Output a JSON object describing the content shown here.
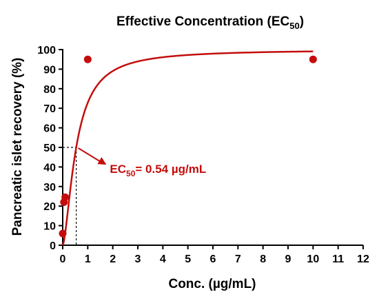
{
  "chart_data": {
    "type": "scatter",
    "title": "Effective Concentration (EC",
    "title_sub": "50",
    "title_end": ")",
    "xlabel": "Conc. (µg/mL)",
    "ylabel": "Pancreatic islet recovery (%)",
    "xlim": [
      0,
      12
    ],
    "ylim": [
      0,
      100
    ],
    "x_ticks": [
      0,
      1,
      2,
      3,
      4,
      5,
      6,
      7,
      8,
      9,
      10,
      11,
      12
    ],
    "y_ticks": [
      0,
      10,
      20,
      30,
      40,
      50,
      60,
      70,
      80,
      90,
      100
    ],
    "grid": false,
    "points": [
      {
        "x": 0,
        "y": 6
      },
      {
        "x": 0.05,
        "y": 22
      },
      {
        "x": 0.1,
        "y": 24.5
      },
      {
        "x": 1,
        "y": 95
      },
      {
        "x": 10,
        "y": 95
      }
    ],
    "fit_curve": {
      "bottom": 0,
      "top": 100,
      "ec50": 0.54,
      "hill": 1.6,
      "x_range": [
        0,
        10
      ]
    },
    "annotation": {
      "prefix": "EC",
      "sub": "50",
      "text": "= 0.54 µg/mL",
      "ec50_x": 0.54,
      "ec50_y": 50,
      "label_anchor": {
        "x": 1.8,
        "y": 41.5
      }
    },
    "colors": {
      "points": "#c40c0c",
      "curve": "#c40c0c",
      "annotation": "#c40c0c",
      "axes": "#000000"
    }
  }
}
